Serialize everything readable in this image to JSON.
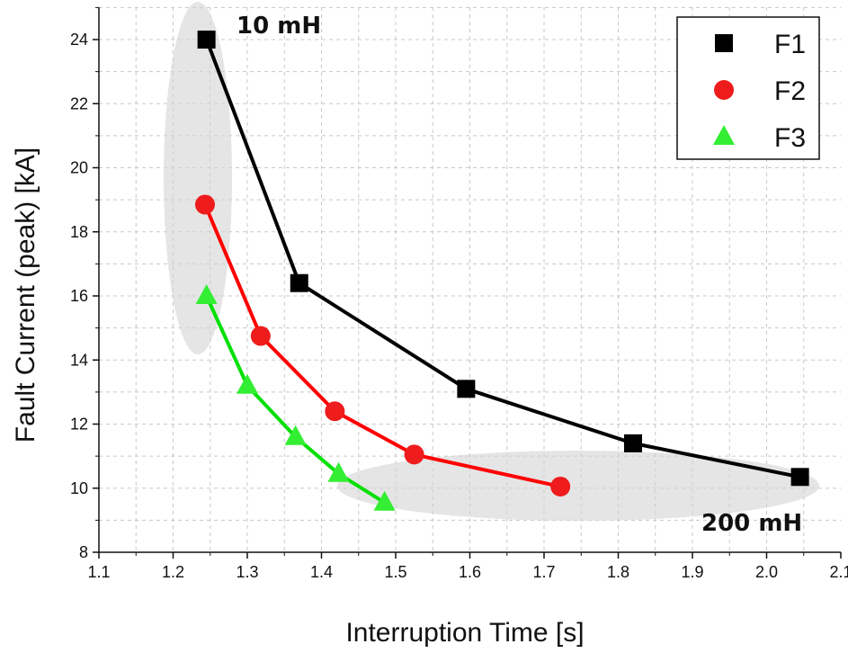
{
  "chart_data": {
    "type": "line",
    "xlabel": "Interruption Time [s]",
    "ylabel": "Fault Current (peak) [kA]",
    "xlim": [
      1.1,
      2.1
    ],
    "ylim": [
      8,
      25
    ],
    "xticks": [
      "1.1",
      "1.2",
      "1.3",
      "1.4",
      "1.5",
      "1.6",
      "1.7",
      "1.8",
      "1.9",
      "2.0",
      "2.1"
    ],
    "yticks": [
      "8",
      "10",
      "12",
      "14",
      "16",
      "18",
      "20",
      "22",
      "24"
    ],
    "grid": true,
    "legend_position": "top-right",
    "series": [
      {
        "name": "F1",
        "marker": "square",
        "line_color": "#000000",
        "marker_color": "#000000",
        "points": [
          [
            1.245,
            24.0
          ],
          [
            1.37,
            16.4
          ],
          [
            1.595,
            13.1
          ],
          [
            1.82,
            11.4
          ],
          [
            2.045,
            10.35
          ]
        ]
      },
      {
        "name": "F2",
        "marker": "circle",
        "line_color": "#ff0000",
        "marker_color": "#ee1c1c",
        "points": [
          [
            1.243,
            18.85
          ],
          [
            1.318,
            14.75
          ],
          [
            1.418,
            12.4
          ],
          [
            1.525,
            11.05
          ],
          [
            1.722,
            10.05
          ]
        ]
      },
      {
        "name": "F3",
        "marker": "triangle",
        "line_color": "#00e000",
        "marker_color": "#33ee33",
        "points": [
          [
            1.245,
            16.0
          ],
          [
            1.3,
            13.2
          ],
          [
            1.365,
            11.6
          ],
          [
            1.423,
            10.45
          ],
          [
            1.485,
            9.55
          ]
        ]
      }
    ],
    "annotations": [
      {
        "text": "10 mH"
      },
      {
        "text": "200 mH"
      }
    ]
  }
}
